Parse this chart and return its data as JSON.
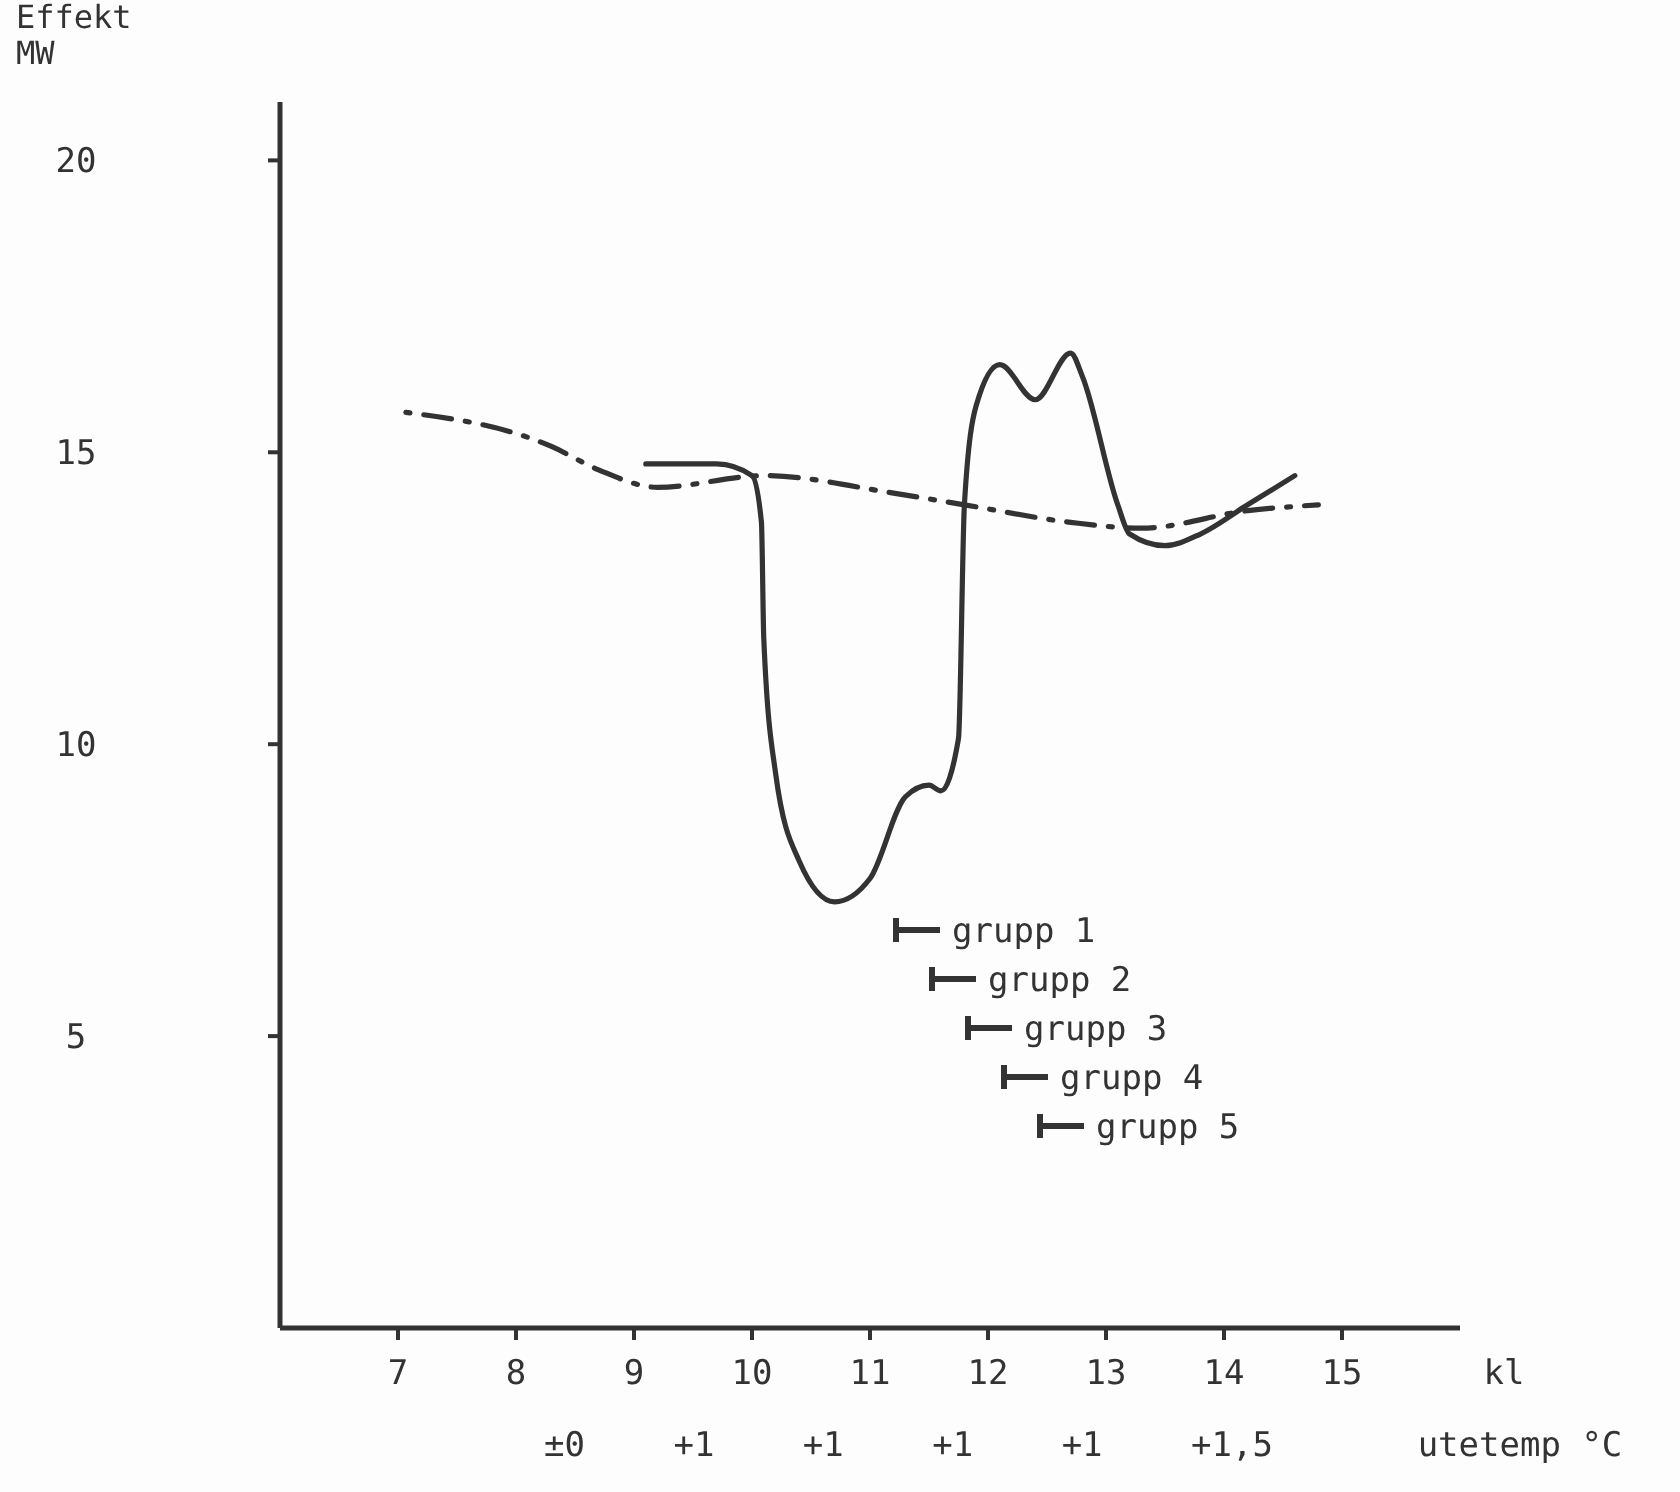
{
  "chart_data": {
    "type": "line",
    "ylabel": "Effekt MW",
    "xlabel": "kl",
    "x2label": "utetemp °C",
    "xlim": [
      6,
      16
    ],
    "xticks": [
      7,
      8,
      9,
      10,
      11,
      12,
      13,
      14,
      15
    ],
    "ylim": [
      0,
      21
    ],
    "yticks": [
      5,
      10,
      15,
      20
    ],
    "grid": false,
    "marker": "none",
    "series": [
      {
        "color": "#333333",
        "line_style": "dashed",
        "x": [
          7,
          8.3,
          8.7,
          9.2,
          10.1,
          11.2,
          11.8,
          12.7,
          13.3,
          14.2,
          14.8
        ],
        "values": [
          15.7,
          15.1,
          14.7,
          14.4,
          14.6,
          14.3,
          14.1,
          13.8,
          13.7,
          14.0,
          14.1
        ]
      },
      {
        "color": "#333333",
        "line_style": "solid",
        "x": [
          9.1,
          9.7,
          10.0,
          10.08,
          10.1,
          10.2,
          10.4,
          10.7,
          11.0,
          11.3,
          11.5,
          11.6,
          11.75,
          11.8,
          11.9,
          12.1,
          12.4,
          12.7,
          12.8,
          13.1,
          13.2,
          13.5,
          13.8,
          14.2,
          14.6
        ],
        "values": [
          14.8,
          14.8,
          14.6,
          13.8,
          11.8,
          9.5,
          8.0,
          7.3,
          7.7,
          9.1,
          9.3,
          9.2,
          10.1,
          14.1,
          15.8,
          16.5,
          15.9,
          16.7,
          16.3,
          14.1,
          13.6,
          13.4,
          13.6,
          14.1,
          14.6
        ]
      }
    ],
    "annotations": [
      "grupp 1",
      "grupp 2",
      "grupp 3",
      "grupp 4",
      "grupp 5",
      "±0 +1 +1 +1 +1 +1,5"
    ]
  }
}
